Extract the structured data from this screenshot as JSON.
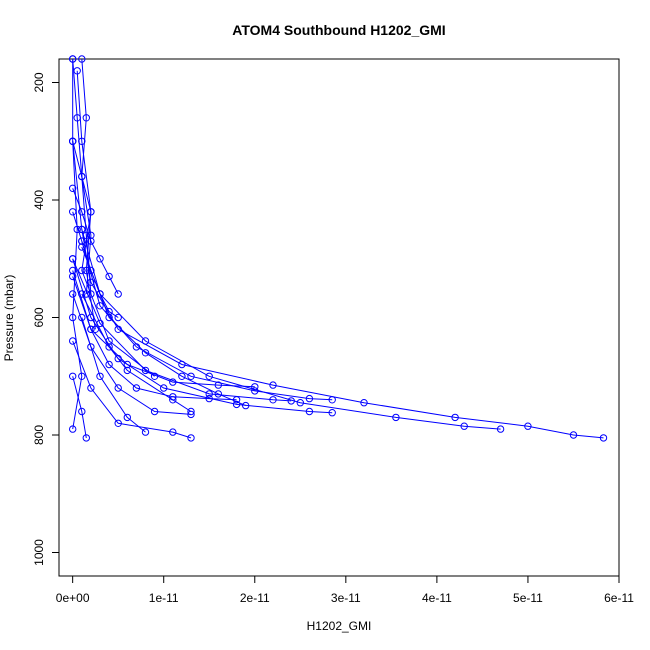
{
  "chart_data": {
    "type": "line",
    "title": "ATOM4 Southbound H1202_GMI",
    "xlabel": "H1202_GMI",
    "ylabel": "Pressure (mbar)",
    "xlim": [
      -1.5e-12,
      6e-11
    ],
    "ylim": [
      1040,
      160
    ],
    "y_reversed": true,
    "x_ticks": [
      0,
      1e-11,
      2e-11,
      3e-11,
      4e-11,
      5e-11,
      6e-11
    ],
    "x_tick_labels": [
      "0e+00",
      "1e-11",
      "2e-11",
      "3e-11",
      "4e-11",
      "5e-11",
      "6e-11"
    ],
    "y_ticks": [
      200,
      400,
      600,
      800,
      1000
    ],
    "y_tick_labels": [
      "200",
      "400",
      "600",
      "800",
      "1000"
    ],
    "grid": false,
    "marker": "open-circle",
    "line_color": "#0000ff",
    "series": [
      {
        "x": [
          0.0,
          1e-12,
          2e-12,
          5e-12,
          1.2e-11,
          2.2e-11,
          3.2e-11,
          4.2e-11,
          5e-11,
          5.5e-11,
          5.83e-11
        ],
        "y": [
          300,
          450,
          540,
          620,
          680,
          715,
          745,
          770,
          785,
          800,
          805
        ]
      },
      {
        "x": [
          1e-12,
          3e-12,
          8e-12,
          1.5e-11,
          2.5e-11,
          3.55e-11,
          4.3e-11,
          4.7e-11
        ],
        "y": [
          450,
          560,
          640,
          700,
          745,
          770,
          785,
          790
        ]
      },
      {
        "x": [
          0.0,
          2e-12,
          5e-12,
          1e-11,
          1.8e-11,
          2.6e-11,
          2.85e-11
        ],
        "y": [
          500,
          600,
          670,
          720,
          748,
          760,
          762
        ]
      },
      {
        "x": [
          1e-12,
          3e-12,
          7e-12,
          1.3e-11,
          2e-11,
          2.6e-11,
          2.85e-11
        ],
        "y": [
          470,
          580,
          650,
          700,
          725,
          738,
          740
        ]
      },
      {
        "x": [
          0.0,
          2e-12,
          6e-12,
          1.1e-11,
          1.6e-11,
          2e-11
        ],
        "y": [
          520,
          620,
          680,
          710,
          715,
          718
        ]
      },
      {
        "x": [
          1e-12,
          4e-12,
          8e-12,
          1.2e-11,
          1.6e-11,
          1.9e-11
        ],
        "y": [
          480,
          600,
          660,
          700,
          730,
          750
        ]
      },
      {
        "x": [
          0.0,
          2e-12,
          5e-12,
          9e-12,
          1.3e-11
        ],
        "y": [
          560,
          650,
          720,
          760,
          765
        ]
      },
      {
        "x": [
          1e-12,
          3e-12,
          6e-12,
          8e-12
        ],
        "y": [
          600,
          700,
          770,
          795
        ]
      },
      {
        "x": [
          0.0,
          2e-12,
          5e-12,
          1.1e-11,
          1.3e-11
        ],
        "y": [
          640,
          720,
          780,
          795,
          805
        ]
      },
      {
        "x": [
          1e-12,
          4e-12,
          6e-12,
          1.1e-11,
          1.3e-11
        ],
        "y": [
          560,
          650,
          690,
          740,
          760
        ]
      },
      {
        "x": [
          0.0,
          3e-12,
          8e-12,
          1.5e-11,
          2.2e-11,
          2.4e-11
        ],
        "y": [
          500,
          610,
          690,
          730,
          740,
          742
        ]
      },
      {
        "x": [
          0.0,
          2e-12,
          4e-12,
          7e-12,
          1.1e-11,
          1.5e-11,
          1.8e-11
        ],
        "y": [
          530,
          620,
          680,
          720,
          735,
          738,
          740
        ]
      },
      {
        "x": [
          0.0,
          1e-12,
          2e-12,
          3e-12,
          4e-12,
          5e-12
        ],
        "y": [
          380,
          420,
          470,
          500,
          530,
          560
        ]
      },
      {
        "x": [
          0.0,
          1e-12,
          2e-12,
          3e-12,
          4e-12,
          5e-12
        ],
        "y": [
          420,
          470,
          520,
          560,
          590,
          600
        ]
      },
      {
        "x": [
          0.0,
          5e-13,
          1e-12,
          1.5e-12,
          2e-12
        ],
        "y": [
          160,
          260,
          360,
          460,
          560
        ]
      },
      {
        "x": [
          1e-12,
          1.5e-12,
          1e-12,
          2e-12,
          1.5e-12
        ],
        "y": [
          160,
          260,
          360,
          460,
          560
        ]
      },
      {
        "x": [
          5e-13,
          1e-12,
          2e-12,
          1.5e-12,
          2.5e-12
        ],
        "y": [
          180,
          300,
          420,
          520,
          620
        ]
      },
      {
        "x": [
          0.0,
          0.0,
          5e-13,
          0.0,
          1e-12,
          0.0
        ],
        "y": [
          160,
          300,
          450,
          600,
          700,
          790
        ]
      },
      {
        "x": [
          0.0,
          2e-12,
          1e-12,
          4e-12,
          9e-12
        ],
        "y": [
          300,
          420,
          520,
          640,
          700
        ]
      },
      {
        "x": [
          0.0,
          1e-12,
          1.5e-12
        ],
        "y": [
          700,
          760,
          805
        ]
      }
    ]
  }
}
